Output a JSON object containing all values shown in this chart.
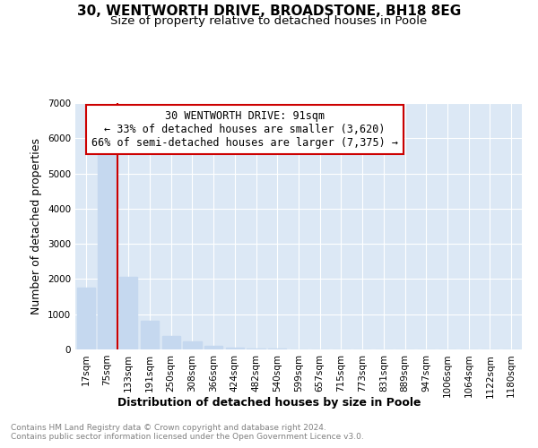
{
  "title": "30, WENTWORTH DRIVE, BROADSTONE, BH18 8EG",
  "subtitle": "Size of property relative to detached houses in Poole",
  "xlabel": "Distribution of detached houses by size in Poole",
  "ylabel": "Number of detached properties",
  "categories": [
    "17sqm",
    "75sqm",
    "133sqm",
    "191sqm",
    "250sqm",
    "308sqm",
    "366sqm",
    "424sqm",
    "482sqm",
    "540sqm",
    "599sqm",
    "657sqm",
    "715sqm",
    "773sqm",
    "831sqm",
    "889sqm",
    "947sqm",
    "1006sqm",
    "1064sqm",
    "1122sqm",
    "1180sqm"
  ],
  "values": [
    1750,
    5750,
    2050,
    820,
    380,
    220,
    100,
    50,
    30,
    15,
    8,
    4,
    3,
    0,
    0,
    0,
    0,
    0,
    0,
    0,
    0
  ],
  "bar_color": "#c5d8ef",
  "property_line_x": 1.5,
  "annotation_title": "30 WENTWORTH DRIVE: 91sqm",
  "annotation_line1": "← 33% of detached houses are smaller (3,620)",
  "annotation_line2": "66% of semi-detached houses are larger (7,375) →",
  "annotation_box_color": "#cc0000",
  "ylim": [
    0,
    7000
  ],
  "yticks": [
    0,
    1000,
    2000,
    3000,
    4000,
    5000,
    6000,
    7000
  ],
  "footer_line1": "Contains HM Land Registry data © Crown copyright and database right 2024.",
  "footer_line2": "Contains public sector information licensed under the Open Government Licence v3.0.",
  "bg_color": "#ffffff",
  "plot_bg_color": "#dce8f5",
  "grid_color": "#ffffff",
  "title_fontsize": 11,
  "subtitle_fontsize": 9.5,
  "axis_label_fontsize": 9,
  "tick_fontsize": 7.5,
  "footer_fontsize": 6.5,
  "annotation_fontsize": 8.5
}
